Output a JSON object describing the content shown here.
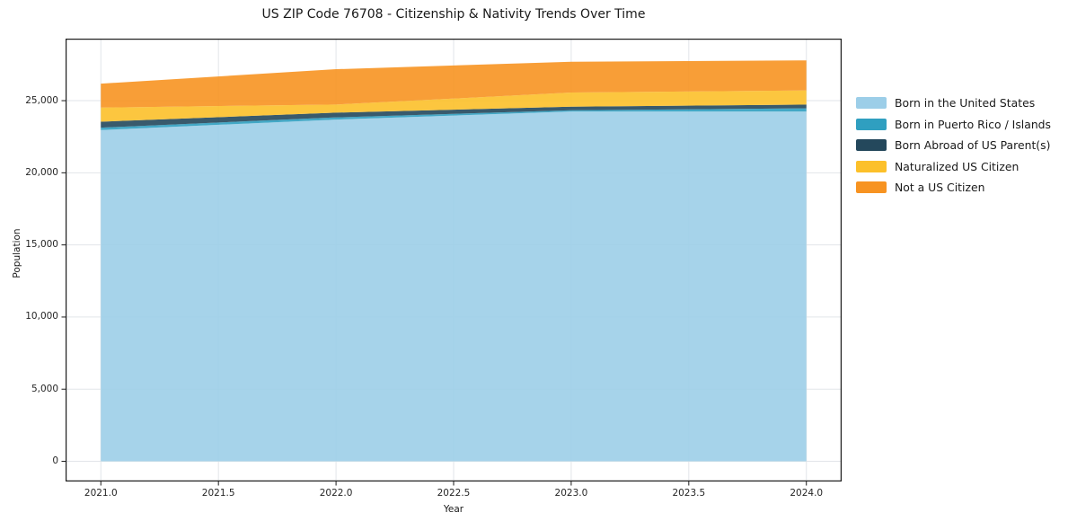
{
  "page": {
    "background": "#ffffff",
    "frame_color": "#1a1a1a",
    "grid_color": "#e2e5e9",
    "text_color": "#1a1a1a"
  },
  "chart_data": {
    "type": "area",
    "stacked": true,
    "title": "US ZIP Code 76708 - Citizenship & Nativity Trends Over Time",
    "xlabel": "Year",
    "ylabel": "Population",
    "x": [
      2021,
      2022,
      2023,
      2024
    ],
    "series": [
      {
        "name": "Born in the United States",
        "color": "#9ccee8",
        "values": [
          22960,
          23690,
          24250,
          24250
        ]
      },
      {
        "name": "Born in Puerto Rico / Islands",
        "color": "#2f9fc0",
        "values": [
          170,
          150,
          80,
          220
        ]
      },
      {
        "name": "Born Abroad of US Parent(s)",
        "color": "#24485c",
        "values": [
          410,
          330,
          250,
          260
        ]
      },
      {
        "name": "Naturalized US Citizen",
        "color": "#fcc02a",
        "values": [
          980,
          560,
          980,
          980
        ]
      },
      {
        "name": "Not a US Citizen",
        "color": "#f79321",
        "values": [
          1660,
          2450,
          2140,
          2080
        ]
      }
    ],
    "totals": [
      26180,
      27180,
      27700,
      27790
    ],
    "x_ticks": {
      "values": [
        2021.0,
        2021.5,
        2022.0,
        2022.5,
        2023.0,
        2023.5,
        2024.0
      ],
      "labels": [
        "2021.0",
        "2021.5",
        "2022.0",
        "2022.5",
        "2023.0",
        "2023.5",
        "2024.0"
      ]
    },
    "y_ticks": {
      "values": [
        0,
        5000,
        10000,
        15000,
        20000,
        25000
      ],
      "labels": [
        "0",
        "5,000",
        "10,000",
        "15,000",
        "20,000",
        "25,000"
      ]
    },
    "xlim": [
      2020.85,
      2024.15
    ],
    "ylim": [
      -1400,
      29300
    ],
    "grid": true,
    "legend_position": "right",
    "fill_opacity": 0.9
  }
}
